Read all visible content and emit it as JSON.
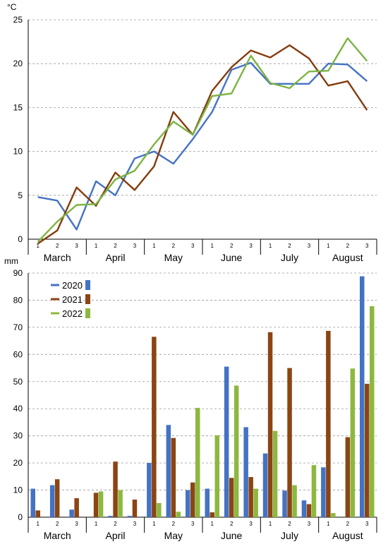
{
  "chart_data": [
    {
      "type": "line",
      "ylabel": "°C",
      "ylim": [
        0,
        25
      ],
      "yticks": [
        0,
        5,
        10,
        15,
        20,
        25
      ],
      "grid": "horizontal dashed",
      "x_ticks": [
        "1",
        "2",
        "3",
        "1",
        "2",
        "3",
        "1",
        "2",
        "3",
        "1",
        "2",
        "3",
        "1",
        "2",
        "3",
        "1",
        "2",
        "3"
      ],
      "months": [
        "March",
        "April",
        "May",
        "June",
        "July",
        "August"
      ],
      "series": [
        {
          "name": "2020",
          "color": "#4472C4",
          "values": [
            4.8,
            4.4,
            1.1,
            6.6,
            5.0,
            9.2,
            10.0,
            8.6,
            11.4,
            14.5,
            19.3,
            20.1,
            17.7,
            17.7,
            17.7,
            20.0,
            19.9,
            18.0
          ]
        },
        {
          "name": "2021",
          "color": "#843C0C",
          "values": [
            -0.5,
            1.0,
            5.9,
            3.8,
            7.6,
            5.6,
            8.3,
            14.5,
            11.9,
            16.9,
            19.6,
            21.5,
            20.7,
            22.1,
            20.6,
            17.5,
            18.0,
            14.7
          ]
        },
        {
          "name": "2022",
          "color": "#7CB342",
          "values": [
            -0.3,
            2.0,
            3.9,
            4.0,
            6.8,
            7.8,
            10.8,
            13.4,
            11.9,
            16.3,
            16.6,
            20.9,
            17.8,
            17.2,
            19.1,
            19.2,
            22.9,
            20.3
          ]
        }
      ]
    },
    {
      "type": "bar",
      "ylabel": "mm",
      "ylim": [
        0,
        90
      ],
      "yticks": [
        0,
        10,
        20,
        30,
        40,
        50,
        60,
        70,
        80,
        90
      ],
      "grid": "horizontal dashed",
      "legend_position": "top-left",
      "x_ticks": [
        "1",
        "2",
        "3",
        "1",
        "2",
        "3",
        "1",
        "2",
        "3",
        "1",
        "2",
        "3",
        "1",
        "2",
        "3",
        "1",
        "2",
        "3"
      ],
      "months": [
        "March",
        "April",
        "May",
        "June",
        "July",
        "August"
      ],
      "series": [
        {
          "name": "2020",
          "color": "#4472C4",
          "values": [
            10.5,
            11.8,
            2.8,
            0.0,
            0.5,
            0.5,
            20.0,
            34.0,
            10.0,
            10.5,
            55.5,
            33.2,
            23.5,
            9.8,
            6.2,
            18.4,
            0.0,
            88.8
          ]
        },
        {
          "name": "2021",
          "color": "#8B4513",
          "values": [
            2.5,
            14.0,
            7.0,
            9.0,
            20.5,
            6.5,
            66.5,
            29.2,
            12.8,
            1.8,
            14.5,
            14.8,
            68.2,
            55.0,
            4.8,
            68.7,
            29.5,
            49.2
          ]
        },
        {
          "name": "2022",
          "color": "#8DB83F",
          "values": [
            0.0,
            0.0,
            0.0,
            9.5,
            10.0,
            0.0,
            5.2,
            2.0,
            40.3,
            30.2,
            48.5,
            10.5,
            31.8,
            11.8,
            19.2,
            1.5,
            54.8,
            77.8
          ]
        }
      ]
    }
  ]
}
